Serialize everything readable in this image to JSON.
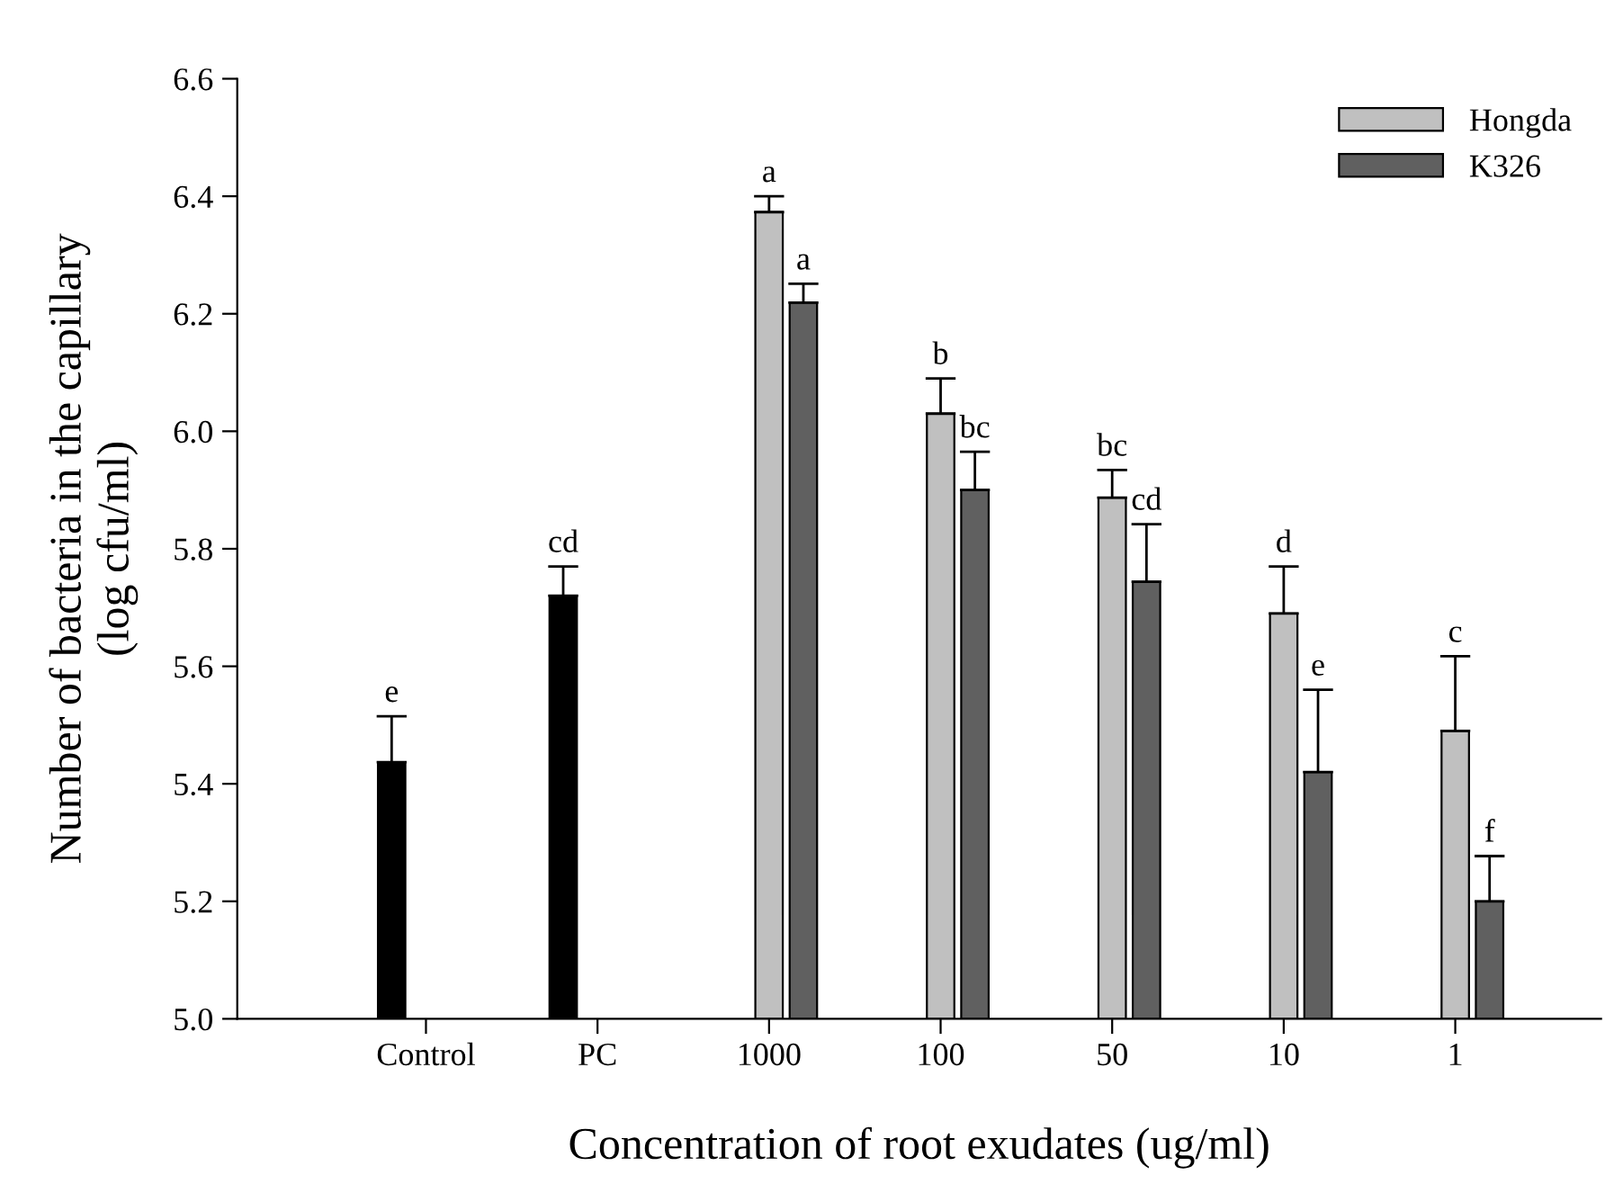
{
  "chart_data": {
    "type": "bar",
    "xlabel": "Concentration of root exudates (ug/ml)",
    "ylabel": "Number of bacteria in the capillary\n(log cfu/ml)",
    "categories": [
      "Control",
      "PC",
      "1000",
      "100",
      "50",
      "10",
      "1"
    ],
    "series": [
      {
        "color": "#000000",
        "values": [
          5.437,
          5.72,
          null,
          null,
          null,
          null,
          null
        ],
        "errors": [
          [
            5.437,
            5.515
          ],
          [
            5.72,
            5.77
          ],
          null,
          null,
          null,
          null,
          null
        ],
        "value_labels": [
          "e",
          "cd",
          null,
          null,
          null,
          null,
          null
        ]
      },
      {
        "name": "Hongda",
        "color": "#c0c0c0",
        "values": [
          null,
          null,
          6.373,
          6.03,
          5.887,
          5.69,
          5.49
        ],
        "errors": [
          null,
          null,
          [
            6.373,
            6.4
          ],
          [
            6.03,
            6.09
          ],
          [
            5.887,
            5.934
          ],
          [
            5.69,
            5.77
          ],
          [
            5.49,
            5.617
          ]
        ],
        "value_labels": [
          null,
          null,
          "a",
          "b",
          "bc",
          "d",
          "c"
        ]
      },
      {
        "name": "K326",
        "color": "#606060",
        "values": [
          null,
          null,
          6.219,
          5.9,
          5.744,
          5.42,
          5.2
        ],
        "errors": [
          null,
          null,
          [
            6.219,
            6.251
          ],
          [
            5.9,
            5.965
          ],
          [
            5.744,
            5.842
          ],
          [
            5.42,
            5.56
          ],
          [
            5.2,
            5.277
          ]
        ],
        "value_labels": [
          null,
          null,
          "a",
          "bc",
          "cd",
          "e",
          "f"
        ]
      }
    ],
    "ylim": [
      5.0,
      6.6
    ],
    "yticks": [
      {
        "value": 5,
        "label": "5.0"
      },
      5.2,
      5.4,
      5.6,
      5.8,
      {
        "value": 6,
        "label": "6.0"
      },
      6.2,
      6.4,
      6.6
    ],
    "grid": false,
    "legend": "top right"
  }
}
